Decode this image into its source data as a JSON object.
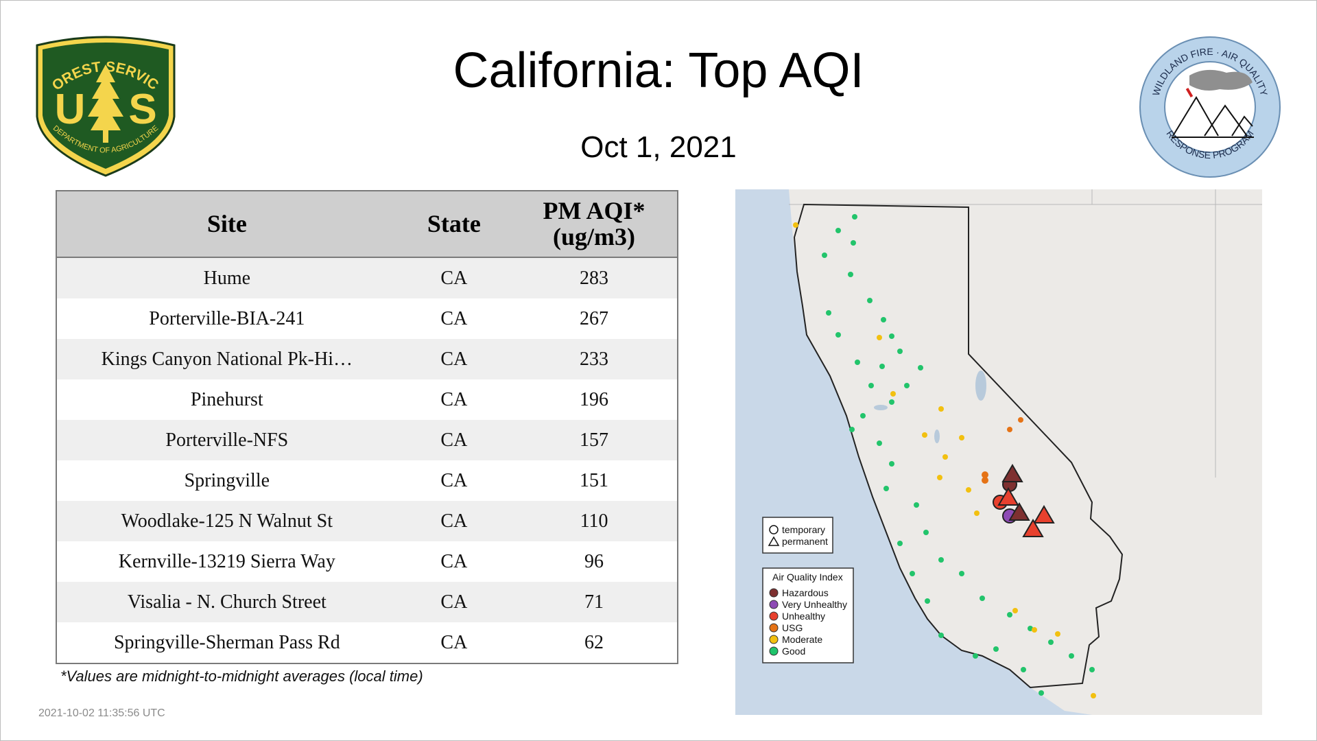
{
  "header": {
    "title": "California: Top AQI",
    "date": "Oct  1, 2021"
  },
  "logos": {
    "forest_service": {
      "top_text": "FOREST SERVICE",
      "bottom_text": "DEPARTMENT OF AGRICULTURE",
      "letters": "U S"
    },
    "wildland_fire": {
      "top_text": "WILDLAND FIRE · AIR QUALITY",
      "bottom_text": "RESPONSE PROGRAM"
    }
  },
  "table": {
    "headers": [
      "Site",
      "State",
      "PM AQI*",
      "(ug/m3)"
    ],
    "rows": [
      {
        "site": "Hume",
        "state": "CA",
        "aqi": "283"
      },
      {
        "site": "Porterville-BIA-241",
        "state": "CA",
        "aqi": "267"
      },
      {
        "site": "Kings Canyon National Pk-Hi…",
        "state": "CA",
        "aqi": "233"
      },
      {
        "site": "Pinehurst",
        "state": "CA",
        "aqi": "196"
      },
      {
        "site": "Porterville-NFS",
        "state": "CA",
        "aqi": "157"
      },
      {
        "site": "Springville",
        "state": "CA",
        "aqi": "151"
      },
      {
        "site": "Woodlake-125 N Walnut St",
        "state": "CA",
        "aqi": "110"
      },
      {
        "site": "Kernville-13219 Sierra Way",
        "state": "CA",
        "aqi": "96"
      },
      {
        "site": "Visalia - N. Church Street",
        "state": "CA",
        "aqi": "71"
      },
      {
        "site": "Springville-Sherman Pass Rd",
        "state": "CA",
        "aqi": "62"
      }
    ]
  },
  "footnote": "*Values are midnight-to-midnight averages (local time)",
  "timestamp": "2021-10-02 11:35:56 UTC",
  "map": {
    "shape_legend": {
      "temporary": "temporary",
      "permanent": "permanent"
    },
    "aqi_legend": {
      "title": "Air Quality Index",
      "items": [
        {
          "label": "Hazardous",
          "color": "#7e3030"
        },
        {
          "label": "Very Unhealthy",
          "color": "#8e4bb5"
        },
        {
          "label": "Unhealthy",
          "color": "#e8412e"
        },
        {
          "label": "USG",
          "color": "#e57316"
        },
        {
          "label": "Moderate",
          "color": "#f2c010"
        },
        {
          "label": "Good",
          "color": "#1fc46b"
        }
      ]
    },
    "colors": {
      "ocean": "#c9d8e8",
      "land": "#eceae7",
      "border": "#222222"
    }
  }
}
